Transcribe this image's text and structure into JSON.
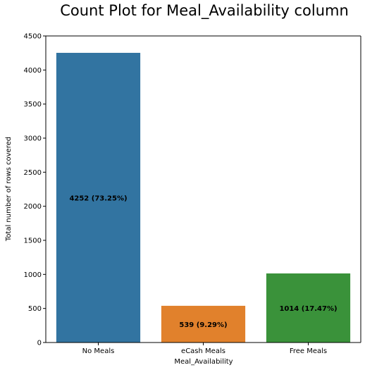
{
  "chart_data": {
    "type": "bar",
    "title": "Count Plot for Meal_Availability column",
    "xlabel": "Meal_Availability",
    "ylabel": "Total number of rows covered",
    "categories": [
      "No Meals",
      "eCash Meals",
      "Free Meals"
    ],
    "values": [
      4252,
      539,
      1014
    ],
    "data_labels": [
      "4252 (73.25%)",
      "539 (9.29%)",
      "1014 (17.47%)"
    ],
    "colors": [
      "#3274a1",
      "#e1812c",
      "#3a923a"
    ],
    "ylim": [
      0,
      4500
    ],
    "yticks": [
      0,
      500,
      1000,
      1500,
      2000,
      2500,
      3000,
      3500,
      4000,
      4500
    ],
    "grid": false,
    "legend": "none"
  }
}
